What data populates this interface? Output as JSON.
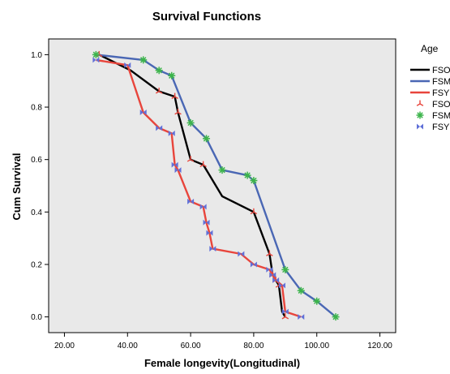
{
  "chart_data": {
    "type": "line",
    "title": "Survival Functions",
    "xlabel": "Female longevity(Longitudinal)",
    "ylabel": "Cum Survival",
    "xlim": [
      15,
      125
    ],
    "ylim": [
      -0.06,
      1.06
    ],
    "x_ticks": [
      "20.00",
      "40.00",
      "60.00",
      "80.00",
      "100.00",
      "120.00"
    ],
    "x_tick_values": [
      20,
      40,
      60,
      80,
      100,
      120
    ],
    "y_ticks": [
      "0.0",
      "0.2",
      "0.4",
      "0.6",
      "0.8",
      "1.0"
    ],
    "y_tick_values": [
      0,
      0.2,
      0.4,
      0.6,
      0.8,
      1.0
    ],
    "grid": false,
    "plot_background": "#e9e9e9",
    "legend": {
      "title": "Age",
      "position": "right",
      "line_entries": [
        "FSO",
        "FSM",
        "FSY"
      ],
      "marker_entries": [
        "FSO",
        "FSM",
        "FSY"
      ]
    },
    "series": [
      {
        "name": "FSO",
        "color": "#000000",
        "marker": "asterisk",
        "marker_color": "#e8453c",
        "x": [
          31,
          41,
          50,
          55,
          56,
          60,
          64,
          70,
          80,
          85,
          86,
          87,
          88,
          89,
          90
        ],
        "y": [
          1.0,
          0.94,
          0.86,
          0.84,
          0.78,
          0.6,
          0.58,
          0.46,
          0.4,
          0.24,
          0.16,
          0.14,
          0.12,
          0.02,
          0.0
        ],
        "censored_x": [
          31,
          50,
          55,
          56,
          60,
          64,
          80,
          85,
          86,
          87,
          88,
          90
        ],
        "censored_y": [
          1.0,
          0.86,
          0.84,
          0.78,
          0.6,
          0.58,
          0.4,
          0.24,
          0.16,
          0.14,
          0.12,
          0.0
        ]
      },
      {
        "name": "FSM",
        "color": "#4a67b4",
        "marker": "star",
        "marker_color": "#3cb44b",
        "x": [
          30,
          45,
          50,
          54,
          60,
          65,
          70,
          78,
          80,
          90,
          95,
          100,
          106
        ],
        "y": [
          1.0,
          0.98,
          0.94,
          0.92,
          0.74,
          0.68,
          0.56,
          0.54,
          0.52,
          0.18,
          0.1,
          0.06,
          0.0
        ],
        "censored_x": [
          30,
          45,
          50,
          54,
          60,
          65,
          70,
          78,
          80,
          90,
          95,
          100,
          106
        ],
        "censored_y": [
          1.0,
          0.98,
          0.94,
          0.92,
          0.74,
          0.68,
          0.56,
          0.54,
          0.52,
          0.18,
          0.1,
          0.06,
          0.0
        ]
      },
      {
        "name": "FSY",
        "color": "#e8453c",
        "marker": "bowtie",
        "marker_color": "#6070d8",
        "x": [
          30,
          40,
          45,
          50,
          54,
          55,
          56,
          60,
          64,
          65,
          66,
          67,
          76,
          80,
          85,
          86,
          87,
          89,
          90,
          95
        ],
        "y": [
          0.98,
          0.96,
          0.78,
          0.72,
          0.7,
          0.58,
          0.56,
          0.44,
          0.42,
          0.36,
          0.32,
          0.26,
          0.24,
          0.2,
          0.18,
          0.16,
          0.14,
          0.12,
          0.02,
          0.0
        ],
        "censored_x": [
          30,
          40,
          45,
          50,
          54,
          55,
          56,
          60,
          64,
          65,
          66,
          67,
          76,
          80,
          85,
          86,
          87,
          89,
          90,
          95
        ],
        "censored_y": [
          0.98,
          0.96,
          0.78,
          0.72,
          0.7,
          0.58,
          0.56,
          0.44,
          0.42,
          0.36,
          0.32,
          0.26,
          0.24,
          0.2,
          0.18,
          0.16,
          0.14,
          0.12,
          0.02,
          0.0
        ]
      }
    ]
  }
}
